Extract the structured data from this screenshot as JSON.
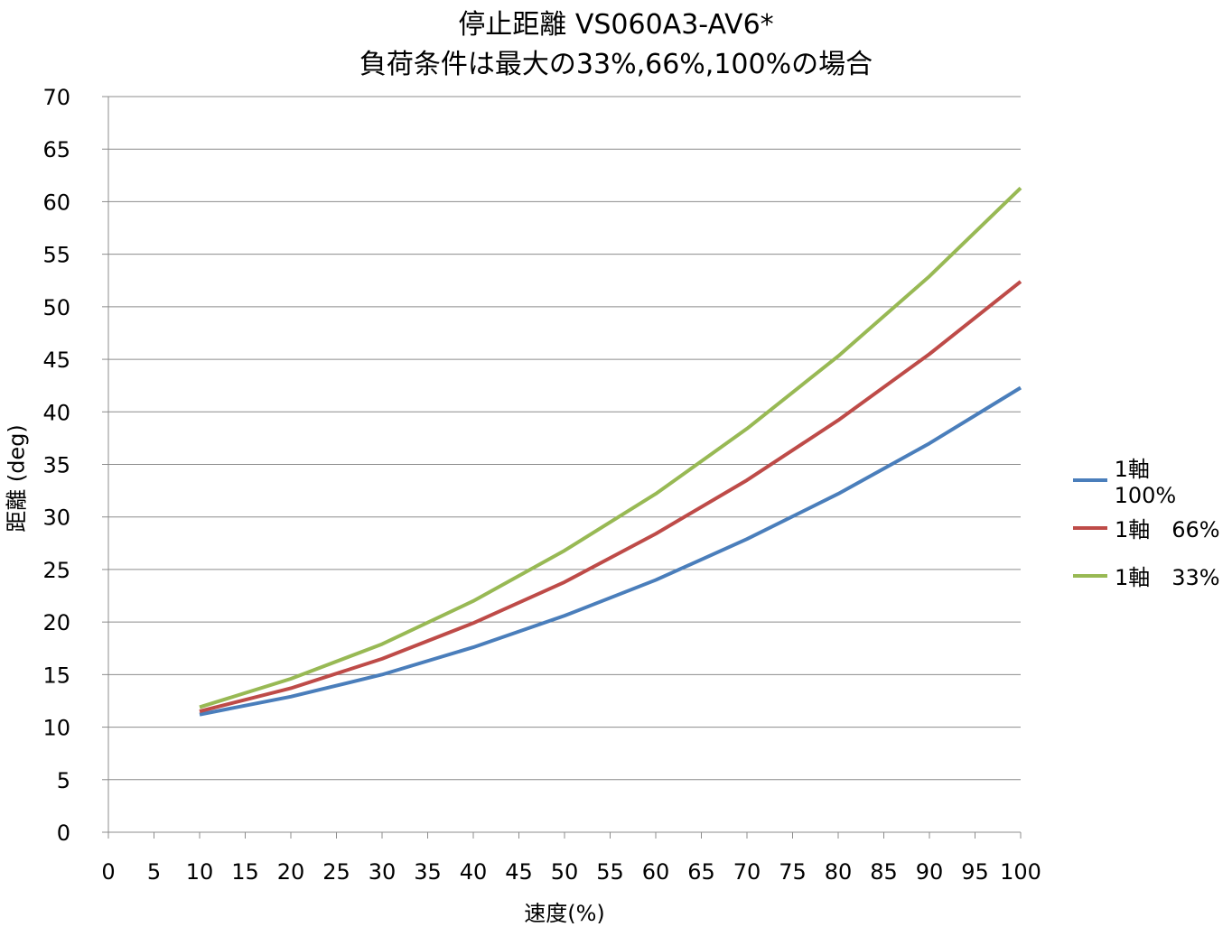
{
  "chart_data": {
    "type": "line",
    "title": "停止距離 VS060A3-AV6*",
    "subtitle": "負荷条件は最大の33%,66%,100%の場合",
    "xlabel": "速度(%)",
    "ylabel": "距離 (deg)",
    "xlim": [
      0,
      100
    ],
    "ylim": [
      0,
      70
    ],
    "x_ticks": [
      0,
      5,
      10,
      15,
      20,
      25,
      30,
      35,
      40,
      45,
      50,
      55,
      60,
      65,
      70,
      75,
      80,
      85,
      90,
      95,
      100
    ],
    "y_ticks": [
      0,
      5,
      10,
      15,
      20,
      25,
      30,
      35,
      40,
      45,
      50,
      55,
      60,
      65,
      70
    ],
    "grid": "horizontal",
    "legend_position": "right",
    "x": [
      10,
      20,
      30,
      40,
      50,
      60,
      70,
      80,
      90,
      100
    ],
    "series": [
      {
        "name": "1軸　100%",
        "color": "#4a7ebb",
        "values": [
          11.2,
          12.9,
          15.0,
          17.6,
          20.6,
          24.0,
          27.9,
          32.2,
          37.0,
          42.3
        ]
      },
      {
        "name": "1軸　66%",
        "color": "#be4b48",
        "values": [
          11.5,
          13.7,
          16.5,
          19.9,
          23.8,
          28.4,
          33.5,
          39.2,
          45.5,
          52.4
        ]
      },
      {
        "name": "1軸　33%",
        "color": "#98b954",
        "values": [
          11.9,
          14.6,
          17.9,
          22.0,
          26.8,
          32.2,
          38.4,
          45.3,
          52.9,
          61.3
        ]
      }
    ]
  }
}
